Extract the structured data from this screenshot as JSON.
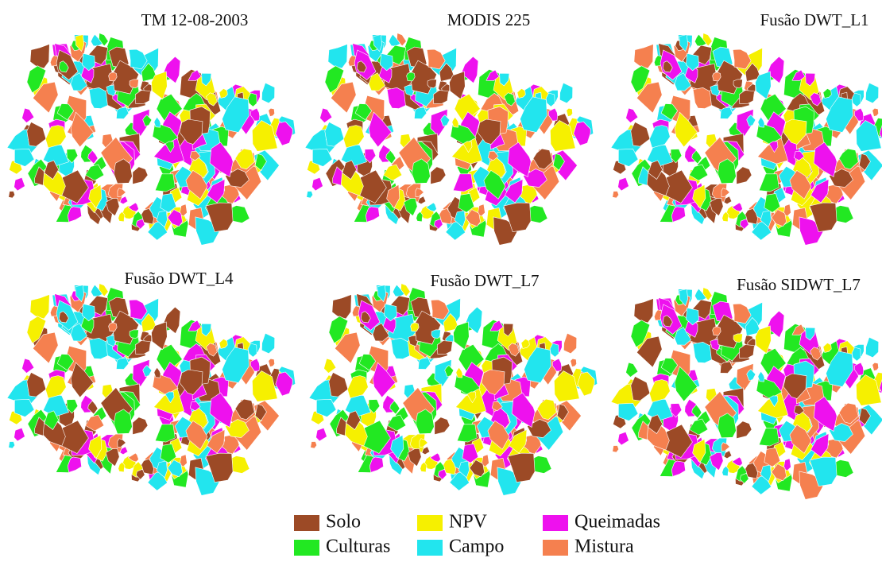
{
  "panels": [
    {
      "title": "TM 12-08-2003"
    },
    {
      "title": "MODIS 225"
    },
    {
      "title": "Fusão DWT_L1"
    },
    {
      "title": "Fusão DWT_L4"
    },
    {
      "title": "Fusão DWT_L7"
    },
    {
      "title": "Fusão SIDWT_L7"
    }
  ],
  "legend": [
    {
      "label": "Solo",
      "color": "#9c4a26"
    },
    {
      "label": "Culturas",
      "color": "#22e822"
    },
    {
      "label": "NPV",
      "color": "#f6f000"
    },
    {
      "label": "Campo",
      "color": "#22e5ee"
    },
    {
      "label": "Queimadas",
      "color": "#ee11ee"
    },
    {
      "label": "Mistura",
      "color": "#f5804f"
    }
  ]
}
